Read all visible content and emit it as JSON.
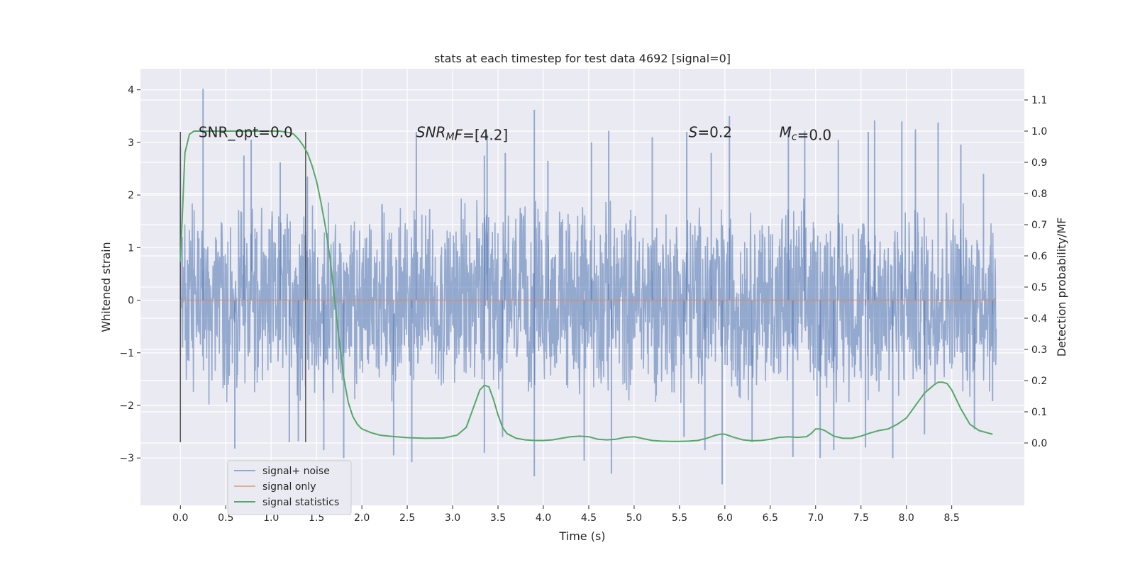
{
  "chart_data": {
    "type": "line",
    "title": "stats at each timestep for test data 4692 [signal=0]",
    "xlabel": "Time (s)",
    "ylabel": "Whitened strain",
    "ylabel_right": "Detection probability/MF",
    "xlim": [
      -0.44,
      9.3
    ],
    "ylim": [
      -3.9,
      4.4
    ],
    "ylim_right": [
      -0.2,
      1.2
    ],
    "x_ticks": [
      0.0,
      0.5,
      1.0,
      1.5,
      2.0,
      2.5,
      3.0,
      3.5,
      4.0,
      4.5,
      5.0,
      5.5,
      6.0,
      6.5,
      7.0,
      7.5,
      8.0,
      8.5
    ],
    "x_tick_labels": [
      "0.0",
      "0.5",
      "1.0",
      "1.5",
      "2.0",
      "2.5",
      "3.0",
      "3.5",
      "4.0",
      "4.5",
      "5.0",
      "5.5",
      "6.0",
      "6.5",
      "7.0",
      "7.5",
      "8.0",
      "8.5"
    ],
    "y_ticks": [
      -3,
      -2,
      -1,
      0,
      1,
      2,
      3,
      4
    ],
    "y_tick_labels": [
      "−3",
      "−2",
      "−1",
      "0",
      "1",
      "2",
      "3",
      "4"
    ],
    "y_right_ticks": [
      0.0,
      0.1,
      0.2,
      0.3,
      0.4,
      0.5,
      0.6,
      0.7,
      0.8,
      0.9,
      1.0,
      1.1
    ],
    "y_right_tick_labels": [
      "0.0",
      "0.1",
      "0.2",
      "0.3",
      "0.4",
      "0.5",
      "0.6",
      "0.7",
      "0.8",
      "0.9",
      "1.0",
      "1.1"
    ],
    "grid": true,
    "legend_position": "lower-left",
    "series": [
      {
        "name": "signal+ noise",
        "color": "#4c72b0",
        "axis": "left",
        "x_range": [
          0.0,
          8.99
        ],
        "description": "whitened noise time series, sampled densely",
        "envelope": {
          "upper_typical": 2.0,
          "lower_typical": -2.0,
          "max": 4.02,
          "min": -3.5
        },
        "spikes": [
          [
            0.25,
            4.02
          ],
          [
            0.0,
            2.92
          ],
          [
            0.7,
            2.75
          ],
          [
            0.78,
            3.05
          ],
          [
            1.1,
            2.62
          ],
          [
            1.4,
            2.35
          ],
          [
            2.6,
            3.2
          ],
          [
            3.35,
            2.75
          ],
          [
            3.38,
            3.15
          ],
          [
            3.58,
            2.8
          ],
          [
            3.9,
            3.62
          ],
          [
            4.05,
            2.65
          ],
          [
            4.53,
            3.0
          ],
          [
            4.72,
            3.22
          ],
          [
            5.2,
            3.1
          ],
          [
            5.58,
            3.2
          ],
          [
            5.85,
            2.8
          ],
          [
            6.05,
            3.5
          ],
          [
            6.7,
            3.3
          ],
          [
            6.88,
            3.22
          ],
          [
            7.25,
            3.05
          ],
          [
            7.58,
            3.2
          ],
          [
            7.65,
            3.42
          ],
          [
            7.95,
            3.4
          ],
          [
            8.1,
            3.25
          ],
          [
            8.35,
            3.38
          ],
          [
            8.6,
            2.96
          ],
          [
            8.85,
            2.4
          ],
          [
            0.6,
            -2.82
          ],
          [
            1.2,
            -2.7
          ],
          [
            1.3,
            -2.68
          ],
          [
            1.58,
            -2.85
          ],
          [
            1.8,
            -3.0
          ],
          [
            2.35,
            -2.95
          ],
          [
            2.55,
            -3.08
          ],
          [
            3.35,
            -2.9
          ],
          [
            3.55,
            -2.6
          ],
          [
            3.9,
            -3.35
          ],
          [
            4.45,
            -3.05
          ],
          [
            4.75,
            -3.3
          ],
          [
            5.55,
            -2.6
          ],
          [
            5.78,
            -2.85
          ],
          [
            5.97,
            -3.5
          ],
          [
            6.3,
            -2.7
          ],
          [
            6.75,
            -2.98
          ],
          [
            7.05,
            -3.0
          ],
          [
            7.2,
            -2.85
          ],
          [
            7.55,
            -2.8
          ],
          [
            7.85,
            -3.0
          ],
          [
            8.2,
            -2.55
          ],
          [
            8.75,
            -2.45
          ],
          [
            8.95,
            -1.92
          ]
        ]
      },
      {
        "name": "signal only",
        "color": "#dd8452",
        "axis": "left",
        "x": [
          0.0,
          8.99
        ],
        "y": [
          0.0,
          0.0
        ]
      },
      {
        "name": "signal statistics",
        "color": "#55a868",
        "axis": "right",
        "x": [
          0.0,
          0.05,
          0.1,
          0.15,
          0.2,
          0.3,
          0.5,
          0.8,
          1.0,
          1.1,
          1.2,
          1.25,
          1.3,
          1.35,
          1.4,
          1.45,
          1.5,
          1.55,
          1.6,
          1.65,
          1.7,
          1.75,
          1.8,
          1.85,
          1.9,
          1.95,
          2.0,
          2.1,
          2.2,
          2.3,
          2.5,
          2.7,
          2.9,
          3.05,
          3.15,
          3.2,
          3.25,
          3.3,
          3.35,
          3.4,
          3.45,
          3.5,
          3.55,
          3.6,
          3.7,
          3.8,
          3.9,
          4.0,
          4.1,
          4.2,
          4.3,
          4.4,
          4.5,
          4.6,
          4.7,
          4.8,
          4.9,
          5.0,
          5.1,
          5.2,
          5.3,
          5.4,
          5.5,
          5.6,
          5.7,
          5.8,
          5.9,
          5.95,
          6.0,
          6.1,
          6.2,
          6.3,
          6.4,
          6.5,
          6.6,
          6.7,
          6.8,
          6.9,
          6.95,
          7.0,
          7.05,
          7.1,
          7.2,
          7.3,
          7.4,
          7.5,
          7.6,
          7.7,
          7.8,
          7.9,
          8.0,
          8.1,
          8.2,
          8.3,
          8.35,
          8.4,
          8.45,
          8.5,
          8.6,
          8.7,
          8.8,
          8.9,
          8.95
        ],
        "y": [
          0.58,
          0.93,
          0.99,
          1.0,
          1.0,
          1.0,
          1.0,
          1.0,
          1.0,
          1.0,
          0.995,
          0.99,
          0.975,
          0.955,
          0.93,
          0.89,
          0.84,
          0.77,
          0.69,
          0.59,
          0.46,
          0.33,
          0.21,
          0.13,
          0.085,
          0.06,
          0.045,
          0.033,
          0.025,
          0.022,
          0.017,
          0.015,
          0.016,
          0.025,
          0.05,
          0.09,
          0.13,
          0.17,
          0.185,
          0.18,
          0.14,
          0.09,
          0.05,
          0.03,
          0.015,
          0.01,
          0.008,
          0.008,
          0.01,
          0.015,
          0.02,
          0.022,
          0.02,
          0.012,
          0.01,
          0.012,
          0.018,
          0.02,
          0.014,
          0.008,
          0.006,
          0.005,
          0.005,
          0.006,
          0.008,
          0.015,
          0.025,
          0.028,
          0.028,
          0.018,
          0.01,
          0.007,
          0.008,
          0.012,
          0.018,
          0.02,
          0.018,
          0.02,
          0.03,
          0.045,
          0.045,
          0.04,
          0.022,
          0.015,
          0.015,
          0.022,
          0.032,
          0.04,
          0.045,
          0.06,
          0.08,
          0.12,
          0.16,
          0.185,
          0.195,
          0.195,
          0.19,
          0.17,
          0.11,
          0.06,
          0.04,
          0.032,
          0.028
        ]
      }
    ],
    "vertical_lines": [
      {
        "x": 0.0,
        "y_range": [
          -2.7,
          3.2
        ],
        "color": "#555555"
      },
      {
        "x": 1.38,
        "y_range": [
          -2.7,
          3.2
        ],
        "color": "#555555"
      }
    ],
    "annotations": [
      {
        "parts": [
          {
            "text": "SNR_opt=0.0",
            "style": "normal"
          }
        ],
        "x": 0.2,
        "y": 3.1
      },
      {
        "parts": [
          {
            "text": "SNR",
            "style": "italic"
          },
          {
            "text": "M",
            "style": "italic-sub"
          },
          {
            "text": "F",
            "style": "italic"
          },
          {
            "text": "=[4.2]",
            "style": "normal"
          }
        ],
        "x": 2.6,
        "y": 3.1
      },
      {
        "parts": [
          {
            "text": "S",
            "style": "italic"
          },
          {
            "text": "=0.2",
            "style": "normal"
          }
        ],
        "x": 5.6,
        "y": 3.1
      },
      {
        "parts": [
          {
            "text": "M",
            "style": "italic"
          },
          {
            "text": "c",
            "style": "italic-sub"
          },
          {
            "text": "=0.0",
            "style": "normal"
          }
        ],
        "x": 6.6,
        "y": 3.1
      }
    ]
  }
}
